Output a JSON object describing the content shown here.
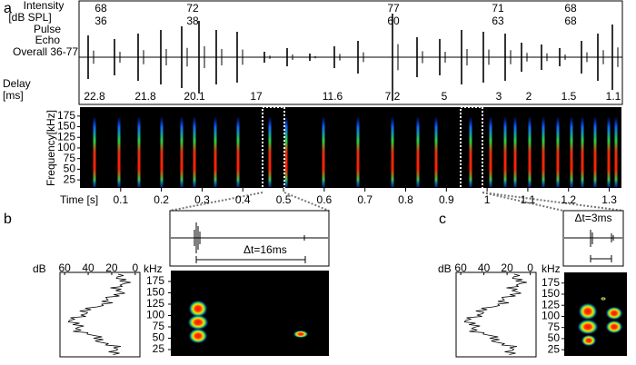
{
  "panel_a": {
    "label": "a",
    "waveform": {
      "intensity_label": "Intensity",
      "intensity_unit": "[dB SPL]",
      "pulse_label": "Pulse",
      "echo_label": "Echo",
      "overall_label": "Overall 36-77",
      "delay_label": "Delay",
      "delay_unit": "[ms]",
      "pulse_color": "#1f6fc4",
      "echo_color": "#1b7d1b",
      "pulse_intensity": [
        68,
        72,
        77,
        71,
        68
      ],
      "echo_intensity": [
        36,
        38,
        60,
        63,
        68
      ],
      "delays": [
        22.8,
        21.8,
        20.1,
        17,
        11.6,
        7.2,
        5,
        3,
        2,
        1.5,
        1.1
      ]
    },
    "spectrogram": {
      "ylabel": "Frequency[kHz]",
      "ylim": [
        6,
        196
      ],
      "yticks": [
        25,
        50,
        75,
        100,
        125,
        150,
        175
      ],
      "xlabel": "Time [s]",
      "xlim": [
        0,
        1.33
      ],
      "xticks": [
        0.1,
        0.2,
        0.3,
        0.4,
        0.5,
        0.6,
        0.7,
        0.8,
        0.9,
        1,
        1.1,
        1.2,
        1.3
      ]
    }
  },
  "panel_b": {
    "label": "b",
    "delta_t": "Δt=16ms",
    "level": {
      "xlabel": "dB",
      "xlim": [
        64,
        -4
      ],
      "xticks": [
        60,
        40,
        20,
        0
      ]
    },
    "spectrogram": {
      "ylabel": "kHz",
      "ylim": [
        11,
        199
      ],
      "yticks": [
        25,
        50,
        75,
        100,
        125,
        150,
        175
      ]
    }
  },
  "panel_c": {
    "label": "c",
    "delta_t": "Δt=3ms",
    "level": {
      "xlabel": "dB",
      "xlim": [
        64,
        -5
      ],
      "xticks": [
        60,
        40,
        20,
        0
      ]
    },
    "spectrogram": {
      "ylabel": "kHz",
      "ylim": [
        11,
        199
      ],
      "yticks": [
        25,
        50,
        75,
        100,
        125,
        150,
        175
      ]
    }
  }
}
